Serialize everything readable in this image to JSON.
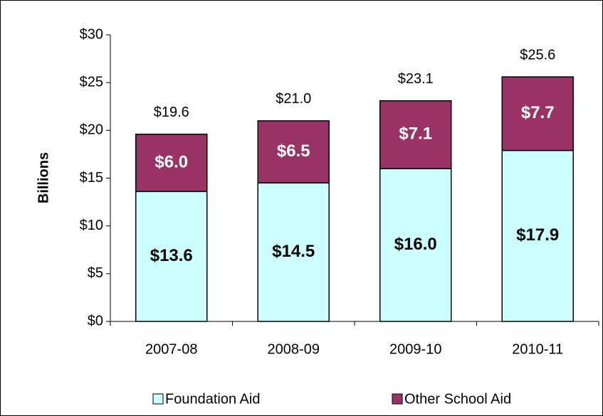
{
  "chart_data": {
    "type": "stacked_bar",
    "y_label": "Billions",
    "categories": [
      "2007-08",
      "2008-09",
      "2009-10",
      "2010-11"
    ],
    "series": [
      {
        "name": "Foundation Aid",
        "color": "#ccffff",
        "values": [
          13.6,
          14.5,
          16.0,
          17.9
        ],
        "value_labels": [
          "$13.6",
          "$14.5",
          "$16.0",
          "$17.9"
        ]
      },
      {
        "name": "Other School Aid",
        "color": "#993366",
        "values": [
          6.0,
          6.5,
          7.1,
          7.7
        ],
        "value_labels": [
          "$6.0",
          "$6.5",
          "$7.1",
          "$7.7"
        ]
      }
    ],
    "totals": {
      "values": [
        19.6,
        21.0,
        23.1,
        25.6
      ],
      "value_labels": [
        "$19.6",
        "$21.0",
        "$23.1",
        "$25.6"
      ]
    },
    "ylim": [
      0,
      30
    ],
    "yticks": [
      {
        "value": 0,
        "label": "$0"
      },
      {
        "value": 5,
        "label": "$5"
      },
      {
        "value": 10,
        "label": "$10"
      },
      {
        "value": 15,
        "label": "$15"
      },
      {
        "value": 20,
        "label": "$20"
      },
      {
        "value": 25,
        "label": "$25"
      },
      {
        "value": 30,
        "label": "$30"
      }
    ],
    "legend": "bottom"
  }
}
